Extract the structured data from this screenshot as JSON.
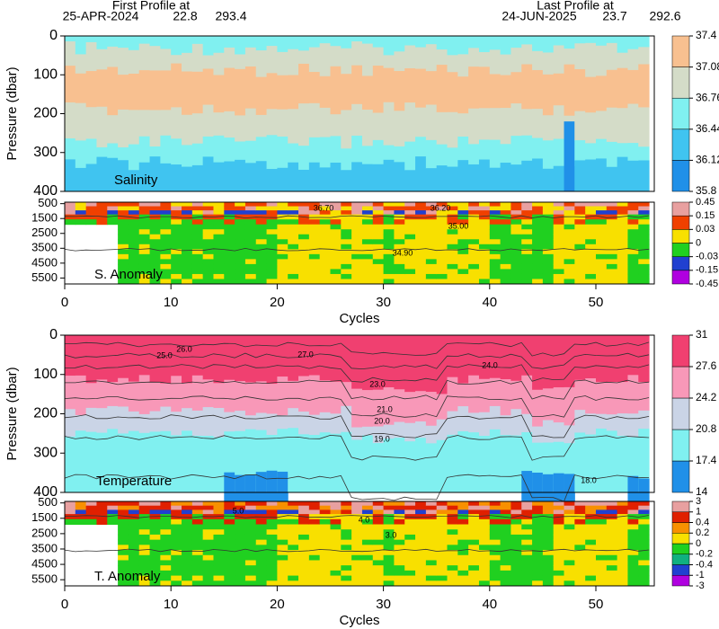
{
  "header": {
    "first_label": "First Profile at",
    "first_date": "25-APR-2024",
    "first_lat": 22.8,
    "first_lon": 293.4,
    "last_label": "Last Profile at",
    "last_date": "24-JUN-2025",
    "last_lat": 23.7,
    "last_lon": 292.6
  },
  "chart_data": [
    {
      "type": "heatmap",
      "label": "Salinity",
      "ylabel": "Pressure (dbar)",
      "ylim": [
        400,
        0
      ],
      "yticks": [
        0,
        100,
        200,
        300,
        400
      ],
      "colorbar": {
        "ticks": [
          35.8,
          36.12,
          36.44,
          36.76,
          37.08,
          37.4
        ],
        "colors": [
          "#2090e8",
          "#40c4f0",
          "#80f0f0",
          "#d4dcc8",
          "#f8c090"
        ]
      }
    },
    {
      "type": "anomaly",
      "label": "S. Anomaly",
      "xlabel": "Cycles",
      "xlim": [
        0,
        55.5
      ],
      "xticks": [
        0,
        10,
        20,
        30,
        40,
        50
      ],
      "ylim": [
        5900,
        400
      ],
      "yticks": [
        500,
        1500,
        2500,
        3500,
        4500,
        5500
      ],
      "contour_labels": [
        "36.70",
        "36.20",
        "35.00",
        "34.90"
      ],
      "colorbar": {
        "ticks": [
          -0.45,
          -0.15,
          -0.03,
          0,
          0.03,
          0.15,
          0.45
        ],
        "colors": [
          "#b000e0",
          "#2040d0",
          "#20d020",
          "#f8e000",
          "#f04000",
          "#e8a0a0"
        ]
      }
    },
    {
      "type": "heatmap",
      "label": "Temperature",
      "ylabel": "Pressure (dbar)",
      "ylim": [
        400,
        0
      ],
      "yticks": [
        0,
        100,
        200,
        300,
        400
      ],
      "contour_labels": [
        "25.0",
        "26.0",
        "27.0",
        "24.0",
        "23.0",
        "21.0",
        "20.0",
        "19.0",
        "18.0"
      ],
      "colorbar": {
        "ticks": [
          14,
          17.4,
          20.8,
          24.2,
          27.6,
          31
        ],
        "colors": [
          "#2090e8",
          "#80f0f0",
          "#cad4e6",
          "#f898b8",
          "#f04070"
        ]
      }
    },
    {
      "type": "anomaly",
      "label": "T. Anomaly",
      "xlabel": "Cycles",
      "xlim": [
        0,
        55.5
      ],
      "xticks": [
        0,
        10,
        20,
        30,
        40,
        50
      ],
      "ylim": [
        5900,
        400
      ],
      "yticks": [
        500,
        1500,
        2500,
        3500,
        4500,
        5500
      ],
      "contour_labels": [
        "5.0",
        "4.0",
        "3.0"
      ],
      "colorbar": {
        "ticks": [
          -3,
          -1,
          -0.4,
          -0.2,
          0,
          0.2,
          0.4,
          1,
          3
        ],
        "colors": [
          "#b000e0",
          "#2040d0",
          "#10b080",
          "#20d020",
          "#f8e000",
          "#f89000",
          "#e02000",
          "#e8a0a0"
        ]
      }
    }
  ]
}
